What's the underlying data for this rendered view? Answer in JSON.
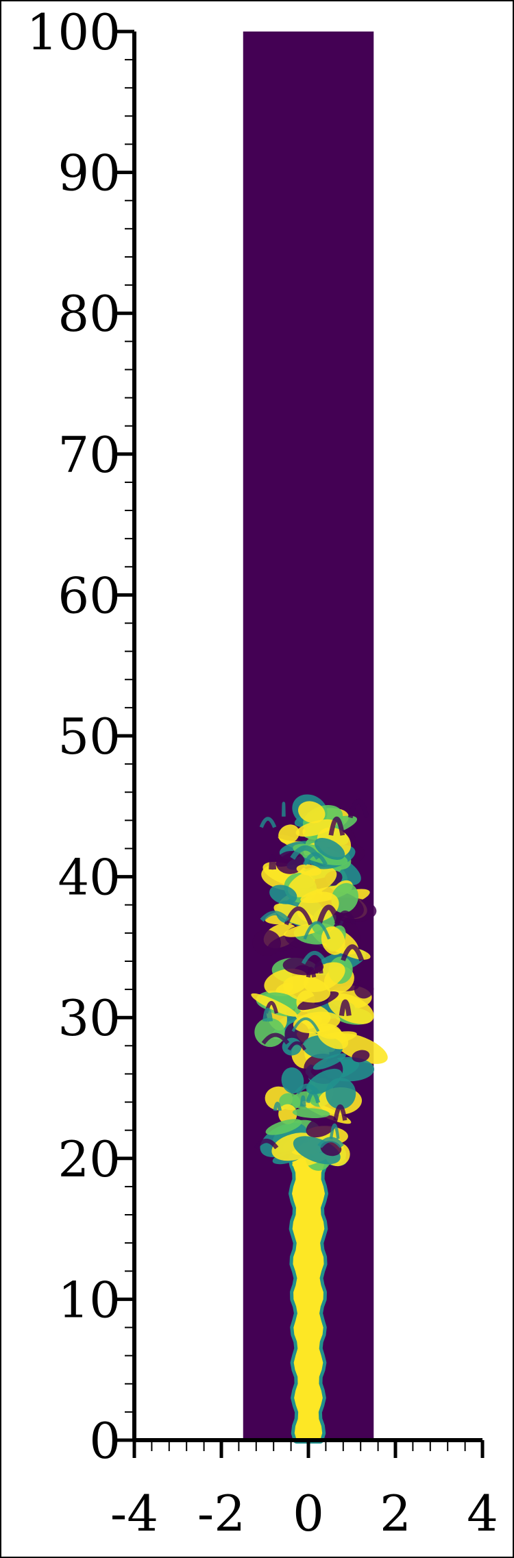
{
  "chart_data": {
    "type": "heatmap",
    "title": "",
    "xlabel": "",
    "ylabel": "",
    "xlim": [
      -4,
      4
    ],
    "ylim": [
      0,
      100
    ],
    "x_ticks": [
      -4,
      -2,
      0,
      2,
      4
    ],
    "x_tick_labels": [
      "-4",
      "-2",
      "0",
      "2",
      "4"
    ],
    "y_ticks": [
      0,
      10,
      20,
      30,
      40,
      50,
      60,
      70,
      80,
      90,
      100
    ],
    "y_tick_labels": [
      "0",
      "10",
      "20",
      "30",
      "40",
      "50",
      "60",
      "70",
      "80",
      "90",
      "100"
    ],
    "x_minor_step": 0.4,
    "y_minor_step": 2,
    "grid": false,
    "domain": {
      "x": [
        -1.5,
        1.5
      ],
      "y": [
        0,
        100
      ]
    },
    "colormap": "viridis",
    "background_value_color": "#440154",
    "jet_color": "#fde725",
    "mid_color": "#21908d",
    "edge_color": "#5ec962",
    "jet": {
      "stem_y": [
        0,
        20
      ],
      "stem_half_width": 0.27,
      "plume_y": [
        20,
        45
      ],
      "plume_x": [
        -1.0,
        1.5
      ]
    }
  }
}
